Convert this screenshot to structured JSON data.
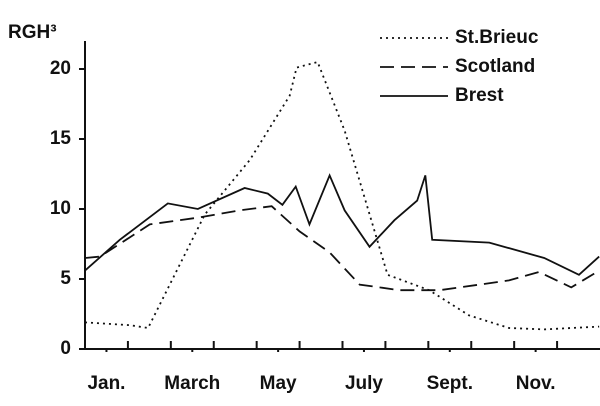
{
  "chart_data": {
    "type": "line",
    "ylabel": "RGH³",
    "xlim": [
      0,
      12
    ],
    "ylim": [
      0,
      22
    ],
    "yticks": [
      0,
      5,
      10,
      15,
      20
    ],
    "xticks": [
      {
        "value": 0.5,
        "label": "Jan."
      },
      {
        "value": 2.5,
        "label": "March"
      },
      {
        "value": 4.5,
        "label": "May"
      },
      {
        "value": 6.5,
        "label": "July"
      },
      {
        "value": 8.5,
        "label": "Sept."
      },
      {
        "value": 10.5,
        "label": "Nov."
      }
    ],
    "xminor": [
      1,
      2,
      3,
      4,
      5,
      6,
      7,
      8,
      9,
      10,
      11
    ],
    "legend": "upper right",
    "series": [
      {
        "name": "St.Brieuc",
        "color": "#111111",
        "dash": "dotted",
        "x": [
          0,
          1.05,
          1.47,
          2.79,
          3.84,
          4.77,
          4.93,
          5.42,
          6.05,
          7.05,
          8.02,
          8.95,
          9.88,
          10.7,
          11.98
        ],
        "values": [
          1.9,
          1.7,
          1.5,
          9.6,
          13.5,
          18.1,
          20.1,
          20.5,
          15.6,
          5.3,
          4.2,
          2.4,
          1.5,
          1.4,
          1.6
        ]
      },
      {
        "name": "Scotland",
        "color": "#111111",
        "dash": "dashed",
        "x": [
          0,
          0.35,
          1.51,
          2.67,
          3.6,
          4.35,
          5.0,
          5.7,
          6.4,
          7.33,
          8.26,
          9.19,
          9.88,
          10.58,
          11.33,
          11.98
        ],
        "values": [
          6.5,
          6.6,
          8.9,
          9.4,
          9.9,
          10.2,
          8.4,
          6.9,
          4.6,
          4.2,
          4.2,
          4.6,
          4.9,
          5.5,
          4.4,
          5.6
        ]
      },
      {
        "name": "Brest",
        "color": "#111111",
        "dash": "solid",
        "x": [
          0,
          0.81,
          1.93,
          2.63,
          3.72,
          4.26,
          4.6,
          4.91,
          5.23,
          5.7,
          6.05,
          6.63,
          7.21,
          7.74,
          7.93,
          8.09,
          9.42,
          10.7,
          11.51,
          11.98
        ],
        "values": [
          5.6,
          7.8,
          10.4,
          10.0,
          11.5,
          11.1,
          10.3,
          11.6,
          8.9,
          12.4,
          9.9,
          7.3,
          9.2,
          10.6,
          12.4,
          7.8,
          7.6,
          6.5,
          5.3,
          6.6
        ]
      }
    ]
  }
}
